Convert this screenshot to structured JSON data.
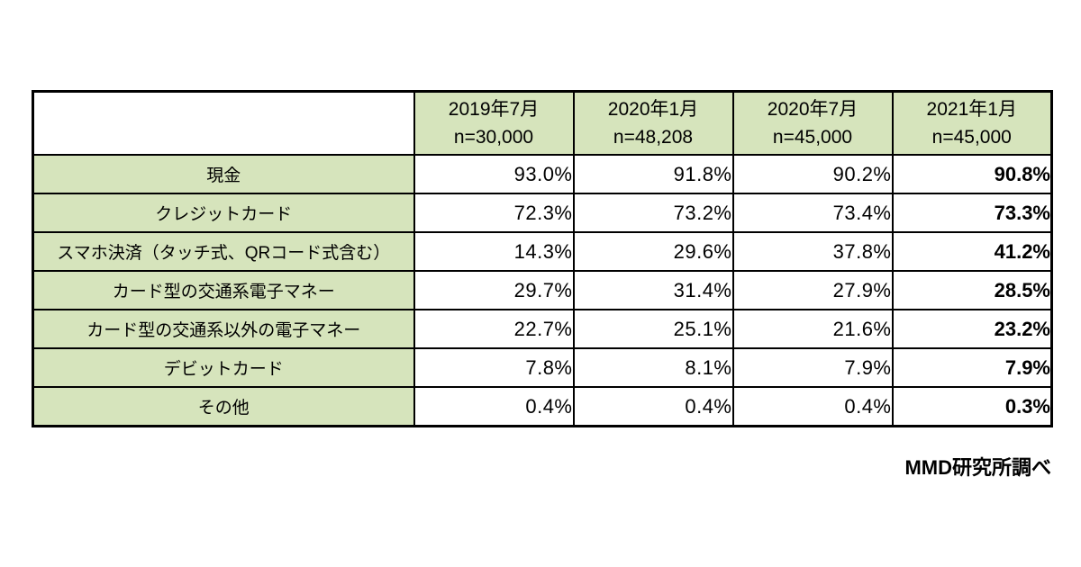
{
  "table": {
    "columns": [
      {
        "period": "2019年7月",
        "n": "n=30,000"
      },
      {
        "period": "2020年1月",
        "n": "n=48,208"
      },
      {
        "period": "2020年7月",
        "n": "n=45,000"
      },
      {
        "period": "2021年1月",
        "n": "n=45,000"
      }
    ],
    "rows": [
      {
        "label": "現金",
        "values": [
          "93.0%",
          "91.8%",
          "90.2%",
          "90.8%"
        ]
      },
      {
        "label": "クレジットカード",
        "values": [
          "72.3%",
          "73.2%",
          "73.4%",
          "73.3%"
        ]
      },
      {
        "label": "スマホ決済（タッチ式、QRコード式含む）",
        "values": [
          "14.3%",
          "29.6%",
          "37.8%",
          "41.2%"
        ]
      },
      {
        "label": "カード型の交通系電子マネー",
        "values": [
          "29.7%",
          "31.4%",
          "27.9%",
          "28.5%"
        ]
      },
      {
        "label": "カード型の交通系以外の電子マネー",
        "values": [
          "22.7%",
          "25.1%",
          "21.6%",
          "23.2%"
        ]
      },
      {
        "label": "デビットカード",
        "values": [
          "7.8%",
          "8.1%",
          "7.9%",
          "7.9%"
        ]
      },
      {
        "label": "その他",
        "values": [
          "0.4%",
          "0.4%",
          "0.4%",
          "0.3%"
        ]
      }
    ]
  },
  "footer": {
    "source": "MMD研究所調べ"
  },
  "colors": {
    "header_green": "#d6e4bc",
    "border": "#000000",
    "background": "#ffffff"
  },
  "chart_data": {
    "type": "table",
    "title": "",
    "row_labels": [
      "現金",
      "クレジットカード",
      "スマホ決済（タッチ式、QRコード式含む）",
      "カード型の交通系電子マネー",
      "カード型の交通系以外の電子マネー",
      "デビットカード",
      "その他"
    ],
    "series": [
      {
        "name": "2019年7月 n=30,000",
        "values": [
          93.0,
          72.3,
          14.3,
          29.7,
          22.7,
          7.8,
          0.4
        ]
      },
      {
        "name": "2020年1月 n=48,208",
        "values": [
          91.8,
          73.2,
          29.6,
          31.4,
          25.1,
          8.1,
          0.4
        ]
      },
      {
        "name": "2020年7月 n=45,000",
        "values": [
          90.2,
          73.4,
          37.8,
          27.9,
          21.6,
          7.9,
          0.4
        ]
      },
      {
        "name": "2021年1月 n=45,000",
        "values": [
          90.8,
          73.3,
          41.2,
          28.5,
          23.2,
          7.9,
          0.3
        ]
      }
    ],
    "unit": "%",
    "emphasized_series": "2021年1月 n=45,000",
    "source": "MMD研究所調べ"
  }
}
